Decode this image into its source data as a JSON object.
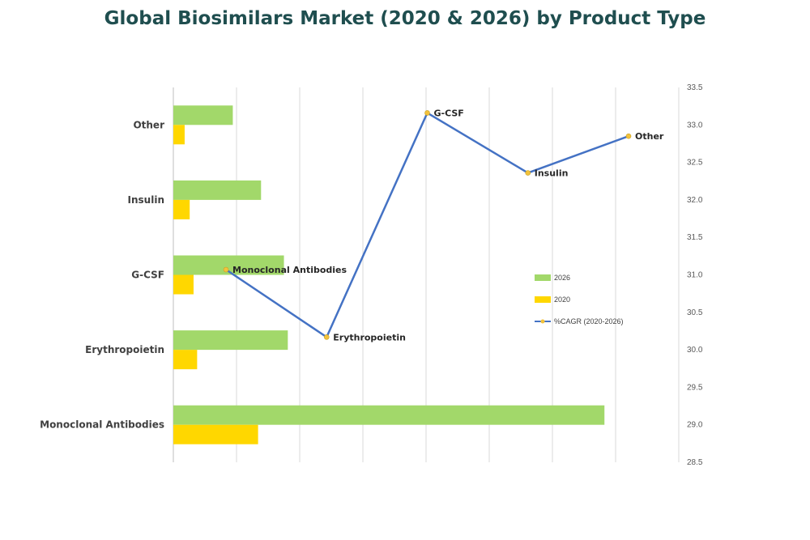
{
  "chart_data": {
    "type": "bar+line",
    "title": "Global Biosimilars Market (2020 & 2026) by Product Type",
    "categories": [
      "Monoclonal Antibodies",
      "Erythropoietin",
      "G-CSF",
      "Insulin",
      "Other"
    ],
    "bar_series": [
      {
        "name": "2026",
        "color": "#a2d86a",
        "values": [
          14.5,
          3.85,
          3.72,
          2.95,
          2.0
        ]
      },
      {
        "name": "2020",
        "color": "#ffd700",
        "values": [
          2.85,
          0.8,
          0.68,
          0.55,
          0.38
        ]
      }
    ],
    "bar_axis": {
      "min": 0,
      "max": 17,
      "gridlines": 8,
      "labels_shown": false
    },
    "line_series": {
      "name": "%CAGR (2020-2026)",
      "color": "#4472c4",
      "marker_color": "#f2c23c",
      "values": [
        31.07,
        30.17,
        33.16,
        32.36,
        32.85
      ],
      "labels": [
        "Monoclonal Antibodies",
        "Erythropoietin",
        "G-CSF",
        "Insulin",
        "Other"
      ]
    },
    "secondary_y": {
      "min": 28.5,
      "max": 33.5,
      "ticks": [
        "28.5",
        "29.0",
        "29.5",
        "30.0",
        "30.5",
        "31.0",
        "31.5",
        "32.0",
        "32.5",
        "33.0",
        "33.5"
      ]
    },
    "legend": {
      "position": "right",
      "items": [
        {
          "label": "2026",
          "kind": "bar",
          "color": "#a2d86a"
        },
        {
          "label": "2020",
          "kind": "bar",
          "color": "#ffd700"
        },
        {
          "label": "%CAGR (2020-2026)",
          "kind": "line",
          "color": "#4472c4"
        }
      ]
    }
  }
}
